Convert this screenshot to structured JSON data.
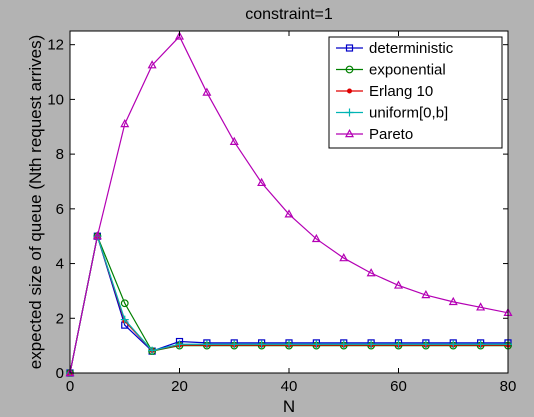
{
  "chart_data": {
    "type": "line",
    "title": "constraint=1",
    "xlabel": "N",
    "ylabel": "expected size of queue (Nth request arrives)",
    "xlim": [
      0,
      80
    ],
    "ylim": [
      0,
      12.5
    ],
    "xticks": [
      0,
      20,
      40,
      60,
      80
    ],
    "yticks": [
      0,
      2,
      4,
      6,
      8,
      10,
      12
    ],
    "grid": false,
    "legend_position": "top-right",
    "x": [
      0,
      5,
      10,
      15,
      20,
      25,
      30,
      35,
      40,
      45,
      50,
      55,
      60,
      65,
      70,
      75,
      80
    ],
    "series": [
      {
        "name": "deterministic",
        "color": "#0000c8",
        "marker": "square",
        "values": [
          0,
          5.0,
          1.75,
          0.8,
          1.15,
          1.1,
          1.1,
          1.1,
          1.1,
          1.1,
          1.1,
          1.1,
          1.1,
          1.1,
          1.1,
          1.1,
          1.1
        ]
      },
      {
        "name": "exponential",
        "color": "#008000",
        "marker": "circle",
        "values": [
          0,
          5.0,
          2.55,
          0.8,
          1.0,
          1.0,
          1.0,
          1.0,
          1.0,
          1.0,
          1.0,
          1.0,
          1.0,
          1.0,
          1.0,
          1.0,
          1.0
        ]
      },
      {
        "name": "Erlang 10",
        "color": "#e00000",
        "marker": "dot",
        "values": [
          0,
          5.0,
          1.9,
          0.82,
          1.02,
          1.02,
          1.02,
          1.02,
          1.02,
          1.02,
          1.02,
          1.02,
          1.02,
          1.02,
          1.02,
          1.02,
          1.02
        ]
      },
      {
        "name": "uniform[0,b]",
        "color": "#00b4b4",
        "marker": "plus",
        "values": [
          0,
          5.0,
          1.95,
          0.82,
          1.05,
          1.05,
          1.05,
          1.05,
          1.05,
          1.05,
          1.05,
          1.05,
          1.05,
          1.05,
          1.05,
          1.05,
          1.05
        ]
      },
      {
        "name": "Pareto",
        "color": "#b400b4",
        "marker": "triangle",
        "values": [
          0,
          5.0,
          9.1,
          11.25,
          12.3,
          10.25,
          8.45,
          6.95,
          5.8,
          4.9,
          4.2,
          3.65,
          3.2,
          2.85,
          2.6,
          2.4,
          2.2
        ]
      }
    ]
  }
}
